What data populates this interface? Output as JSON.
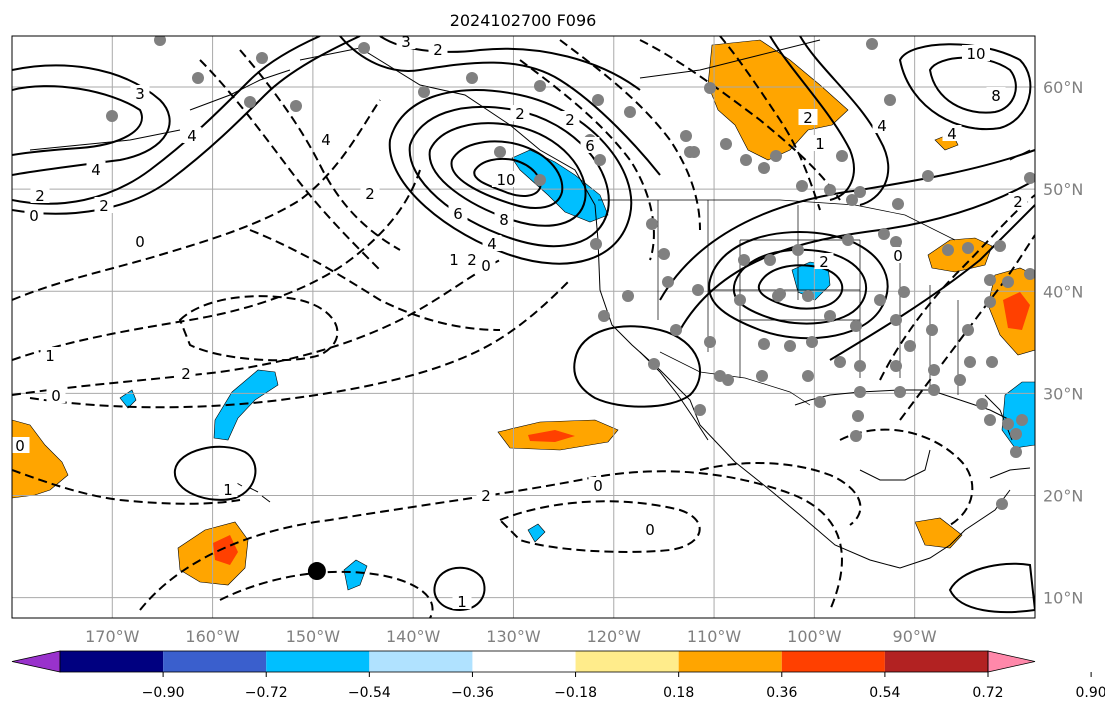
{
  "title": "2024102700 F096",
  "map": {
    "lon_range": [
      -180,
      -78
    ],
    "lat_range": [
      8,
      65
    ],
    "lon_ticks": [
      "170°W",
      "160°W",
      "150°W",
      "140°W",
      "130°W",
      "120°W",
      "110°W",
      "100°W",
      "90°W"
    ],
    "lat_ticks": [
      "60°N",
      "50°N",
      "40°N",
      "30°N",
      "20°N",
      "10°N"
    ],
    "grid": true,
    "station_marker": {
      "color": "#808080",
      "shape": "circle"
    },
    "highlight_marker": {
      "color": "#000000",
      "shape": "circle",
      "lon": -149.6,
      "lat": 12.6
    }
  },
  "contour_labels": [
    "3",
    "2",
    "4",
    "2",
    "0",
    "2",
    "4",
    "3",
    "4",
    "2",
    "0",
    "10",
    "6",
    "8",
    "4",
    "2",
    "1",
    "0",
    "2",
    "2",
    "6",
    "10",
    "8",
    "4",
    "4",
    "2",
    "1",
    "2",
    "0",
    "2",
    "1",
    "2",
    "0",
    "0",
    "1",
    "2",
    "0",
    "0",
    "1"
  ],
  "colorbar": {
    "extend": "both",
    "ticks": [
      "−0.90",
      "−0.72",
      "−0.54",
      "−0.36",
      "−0.18",
      "0.18",
      "0.36",
      "0.54",
      "0.72",
      "0.90"
    ],
    "colors": [
      "#9932cc",
      "#000080",
      "#3a5fcd",
      "#00bfff",
      "#b0e2ff",
      "#ffffff",
      "#ffec8b",
      "#ffa500",
      "#ff4000",
      "#b22222",
      "#ff88aa"
    ]
  }
}
